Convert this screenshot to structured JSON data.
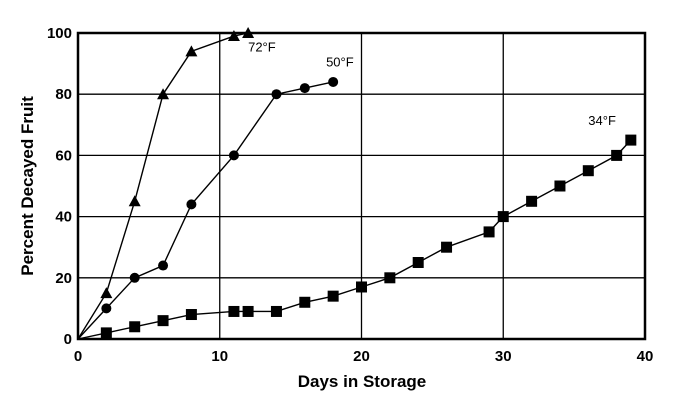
{
  "chart_data": {
    "type": "line",
    "title": "",
    "xlabel": "Days in Storage",
    "ylabel": "Percent Decayed Fruit",
    "xlim": [
      0,
      40
    ],
    "ylim": [
      0,
      100
    ],
    "xticks": [
      0,
      10,
      20,
      30,
      40
    ],
    "yticks": [
      0,
      20,
      40,
      60,
      80,
      100
    ],
    "grid": true,
    "legend": "inline labels near series ends",
    "series": [
      {
        "name": "72°F",
        "marker": "triangle",
        "x": [
          0,
          2,
          4,
          6,
          8,
          11,
          12
        ],
        "y": [
          0,
          15,
          45,
          80,
          94,
          99,
          100
        ],
        "label_pos": [
          12,
          94
        ]
      },
      {
        "name": "50°F",
        "marker": "circle",
        "x": [
          0,
          2,
          4,
          6,
          8,
          11,
          14,
          16,
          18
        ],
        "y": [
          0,
          10,
          20,
          24,
          44,
          60,
          80,
          82,
          84
        ],
        "label_pos": [
          17.5,
          89
        ]
      },
      {
        "name": "34°F",
        "marker": "square",
        "x": [
          0,
          2,
          4,
          6,
          8,
          11,
          12,
          14,
          16,
          18,
          20,
          22,
          24,
          26,
          29,
          30,
          32,
          34,
          36,
          38,
          39
        ],
        "y": [
          0,
          2,
          4,
          6,
          8,
          9,
          9,
          9,
          12,
          14,
          17,
          20,
          25,
          30,
          35,
          40,
          45,
          50,
          55,
          60,
          65
        ],
        "label_pos": [
          36,
          70
        ]
      }
    ]
  }
}
